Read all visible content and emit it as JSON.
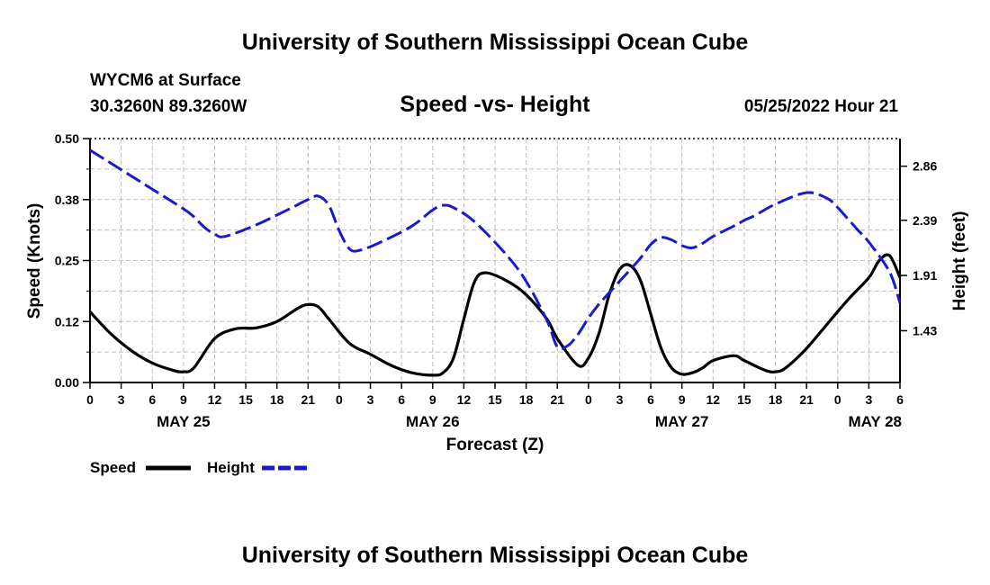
{
  "chart_data": {
    "type": "line",
    "title": "University of Southern Mississippi Ocean Cube",
    "footer_title": "University of Southern Mississippi Ocean Cube",
    "subtitle": "Speed -vs- Height",
    "station": "WYCM6 at Surface",
    "location": "30.3260N  89.3260W",
    "timestamp": "05/25/2022 Hour 21",
    "xlabel": "Forecast (Z)",
    "ylabel_left": "Speed (Knots)",
    "ylabel_right": "Height (feet)",
    "x_range": [
      0,
      78
    ],
    "ylim_left": [
      0,
      0.5
    ],
    "ylim_right": [
      0.98,
      3.1
    ],
    "left_ticks": [
      {
        "v": 0,
        "label": "0.00"
      },
      {
        "v": 0.125,
        "label": "0.12"
      },
      {
        "v": 0.25,
        "label": "0.25"
      },
      {
        "v": 0.375,
        "label": "0.38"
      },
      {
        "v": 0.5,
        "label": "0.50"
      }
    ],
    "right_ticks": [
      {
        "v": 1.43,
        "label": "1.43"
      },
      {
        "v": 1.91,
        "label": "1.91"
      },
      {
        "v": 2.39,
        "label": "2.39"
      },
      {
        "v": 2.86,
        "label": "2.86"
      }
    ],
    "x_ticks": [
      "0",
      "3",
      "6",
      "9",
      "12",
      "15",
      "18",
      "21",
      "0",
      "3",
      "6",
      "9",
      "12",
      "15",
      "18",
      "21",
      "0",
      "3",
      "6",
      "9",
      "12",
      "15",
      "18",
      "21",
      "0",
      "3",
      "6"
    ],
    "day_labels": [
      {
        "hour": 9,
        "label": "MAY 25"
      },
      {
        "hour": 33,
        "label": "MAY 26"
      },
      {
        "hour": 57,
        "label": "MAY 27"
      },
      {
        "hour": 78,
        "label": "MAY 28"
      }
    ],
    "grid": true,
    "legend_position": "bottom-left",
    "series": [
      {
        "name": "Speed",
        "axis": "left",
        "color": "#000000",
        "style": "solid",
        "x": [
          0,
          2,
          4,
          6,
          8,
          9,
          10,
          12,
          14,
          16,
          18,
          20,
          21,
          22,
          23,
          25,
          27,
          29,
          31,
          33,
          34,
          35,
          36,
          37,
          38,
          40,
          42,
          44,
          45,
          47,
          48,
          49,
          50,
          51,
          52,
          53,
          54,
          55,
          56,
          57,
          58,
          59,
          60,
          62,
          63,
          65,
          66,
          67,
          69,
          71,
          73,
          75,
          76,
          77,
          78
        ],
        "values": [
          0.145,
          0.1,
          0.065,
          0.04,
          0.025,
          0.022,
          0.03,
          0.09,
          0.11,
          0.112,
          0.125,
          0.152,
          0.16,
          0.155,
          0.13,
          0.08,
          0.058,
          0.035,
          0.02,
          0.015,
          0.02,
          0.05,
          0.13,
          0.205,
          0.225,
          0.21,
          0.18,
          0.13,
          0.09,
          0.035,
          0.05,
          0.1,
          0.18,
          0.232,
          0.24,
          0.21,
          0.14,
          0.07,
          0.03,
          0.017,
          0.02,
          0.03,
          0.045,
          0.055,
          0.045,
          0.025,
          0.022,
          0.03,
          0.07,
          0.12,
          0.17,
          0.215,
          0.25,
          0.26,
          0.215
        ]
      },
      {
        "name": "Height",
        "axis": "right",
        "color": "#1a1acc",
        "style": "dashed",
        "x": [
          0,
          3,
          6,
          9,
          10,
          11,
          12,
          13,
          16,
          19,
          21,
          22,
          23,
          24,
          25,
          26,
          28,
          31,
          33,
          34,
          35,
          37,
          40,
          42,
          44,
          45,
          46,
          47,
          48,
          49,
          51,
          53,
          54,
          55,
          56,
          57,
          58,
          59,
          60,
          62,
          63,
          64,
          66,
          69,
          71,
          72,
          73,
          74,
          75,
          77,
          78
        ],
        "values": [
          3.0,
          2.83,
          2.66,
          2.49,
          2.42,
          2.33,
          2.27,
          2.25,
          2.35,
          2.48,
          2.57,
          2.6,
          2.52,
          2.3,
          2.14,
          2.13,
          2.2,
          2.34,
          2.48,
          2.52,
          2.5,
          2.38,
          2.1,
          1.86,
          1.52,
          1.29,
          1.3,
          1.4,
          1.54,
          1.66,
          1.86,
          2.06,
          2.18,
          2.24,
          2.22,
          2.17,
          2.15,
          2.19,
          2.25,
          2.34,
          2.39,
          2.43,
          2.53,
          2.63,
          2.58,
          2.5,
          2.4,
          2.3,
          2.2,
          1.94,
          1.67
        ]
      }
    ]
  }
}
